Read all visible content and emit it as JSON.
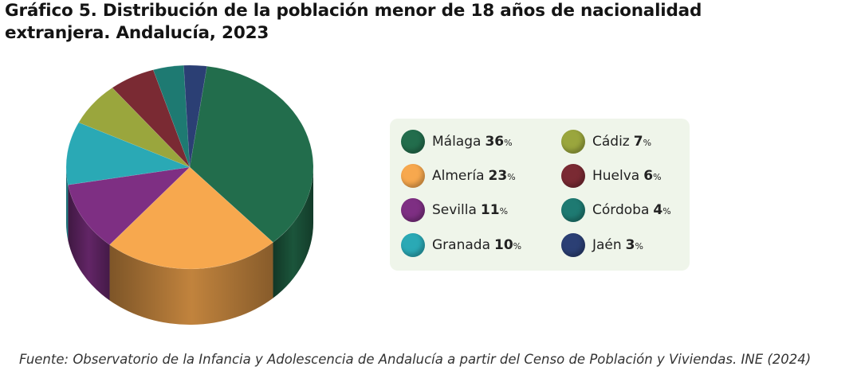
{
  "title": "Gráfico 5. Distribución de la población menor de 18 años de nacionalidad extranjera. Andalucía, 2023",
  "source": "Fuente: Observatorio de la Infancia y Adolescencia de Andalucía a partir del Censo de Población y Viviendas. INE (2024)",
  "chart_data": {
    "type": "pie",
    "title": "Gráfico 5. Distribución de la población menor de 18 años de nacionalidad extranjera. Andalucía, 2023",
    "style": "3d-cylinder",
    "legend_position": "right",
    "unit": "%",
    "slices": [
      {
        "label": "Málaga",
        "value": 36,
        "color": "#226d4c"
      },
      {
        "label": "Almería",
        "value": 23,
        "color": "#f7a84e"
      },
      {
        "label": "Sevilla",
        "value": 11,
        "color": "#7e2f83"
      },
      {
        "label": "Granada",
        "value": 10,
        "color": "#2aa9b5"
      },
      {
        "label": "Cádiz",
        "value": 7,
        "color": "#9aa63d"
      },
      {
        "label": "Huelva",
        "value": 6,
        "color": "#7a2a33"
      },
      {
        "label": "Córdoba",
        "value": 4,
        "color": "#1e7a72"
      },
      {
        "label": "Jaén",
        "value": 3,
        "color": "#2b3f74"
      }
    ]
  }
}
